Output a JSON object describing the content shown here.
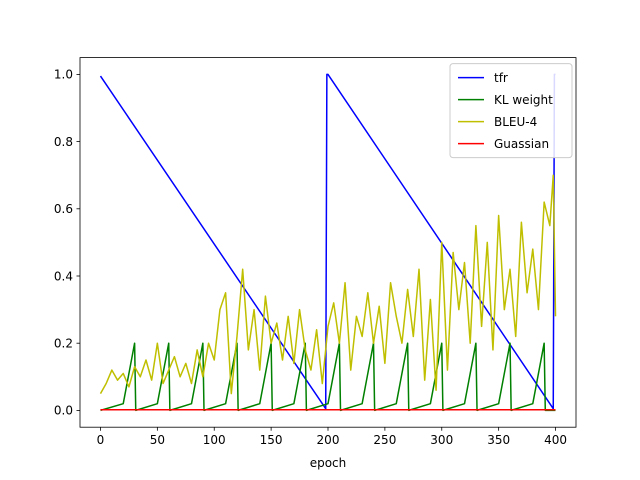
{
  "chart_data": {
    "type": "line",
    "title": "",
    "xlabel": "epoch",
    "ylabel": "",
    "xlim": [
      -18,
      418
    ],
    "ylim": [
      -0.05,
      1.05
    ],
    "x_ticks": [
      0,
      50,
      100,
      150,
      200,
      250,
      300,
      350,
      400
    ],
    "x_tick_labels": [
      "0",
      "50",
      "100",
      "150",
      "200",
      "250",
      "300",
      "350",
      "400"
    ],
    "y_ticks": [
      0.0,
      0.2,
      0.4,
      0.6,
      0.8,
      1.0
    ],
    "y_tick_labels": [
      "0.0",
      "0.2",
      "0.4",
      "0.6",
      "0.8",
      "1.0"
    ],
    "grid": false,
    "legend_position": "top-right",
    "series": [
      {
        "name": "tfr",
        "color": "#0000ff",
        "x": [
          0,
          198,
          199,
          200,
          398,
          399,
          400
        ],
        "y": [
          0.995,
          0.005,
          1.0,
          1.0,
          0.005,
          1.0,
          1.0
        ]
      },
      {
        "name": "KL weight",
        "color": "#008000",
        "x": [
          0,
          20,
          30,
          31,
          50,
          60,
          61,
          80,
          90,
          91,
          110,
          120,
          121,
          140,
          150,
          151,
          170,
          180,
          181,
          200,
          210,
          211,
          230,
          240,
          241,
          260,
          270,
          271,
          290,
          300,
          301,
          320,
          330,
          331,
          350,
          360,
          361,
          380,
          390,
          391,
          400
        ],
        "y": [
          0.0,
          0.02,
          0.2,
          0.0,
          0.02,
          0.2,
          0.0,
          0.02,
          0.2,
          0.0,
          0.02,
          0.2,
          0.0,
          0.02,
          0.2,
          0.0,
          0.02,
          0.2,
          0.0,
          0.02,
          0.2,
          0.0,
          0.02,
          0.2,
          0.0,
          0.02,
          0.2,
          0.0,
          0.02,
          0.2,
          0.0,
          0.02,
          0.2,
          0.0,
          0.02,
          0.2,
          0.0,
          0.02,
          0.2,
          0.0,
          0.0
        ]
      },
      {
        "name": "BLEU-4",
        "color": "#bfbf00",
        "x": [
          0,
          5,
          10,
          15,
          20,
          25,
          30,
          35,
          40,
          45,
          50,
          55,
          60,
          65,
          70,
          75,
          80,
          85,
          90,
          95,
          100,
          105,
          110,
          115,
          120,
          125,
          130,
          135,
          140,
          145,
          150,
          155,
          160,
          165,
          170,
          175,
          180,
          185,
          190,
          195,
          200,
          205,
          210,
          215,
          220,
          225,
          230,
          235,
          240,
          245,
          250,
          255,
          260,
          265,
          270,
          275,
          280,
          285,
          290,
          295,
          300,
          305,
          310,
          315,
          320,
          325,
          330,
          335,
          340,
          345,
          350,
          355,
          360,
          365,
          370,
          375,
          380,
          385,
          390,
          395,
          398,
          400
        ],
        "y": [
          0.05,
          0.08,
          0.12,
          0.09,
          0.11,
          0.07,
          0.13,
          0.1,
          0.15,
          0.09,
          0.2,
          0.08,
          0.12,
          0.16,
          0.1,
          0.14,
          0.08,
          0.18,
          0.1,
          0.2,
          0.15,
          0.3,
          0.35,
          0.05,
          0.22,
          0.42,
          0.18,
          0.3,
          0.12,
          0.34,
          0.2,
          0.26,
          0.15,
          0.28,
          0.14,
          0.3,
          0.18,
          0.12,
          0.24,
          0.08,
          0.25,
          0.32,
          0.2,
          0.38,
          0.12,
          0.28,
          0.22,
          0.35,
          0.2,
          0.31,
          0.14,
          0.38,
          0.28,
          0.2,
          0.36,
          0.22,
          0.42,
          0.09,
          0.33,
          0.06,
          0.5,
          0.12,
          0.47,
          0.3,
          0.44,
          0.2,
          0.55,
          0.25,
          0.5,
          0.18,
          0.58,
          0.3,
          0.42,
          0.22,
          0.56,
          0.35,
          0.48,
          0.3,
          0.62,
          0.55,
          0.7,
          0.28
        ]
      },
      {
        "name": "Guassian",
        "color": "#ff0000",
        "x": [
          0,
          400
        ],
        "y": [
          0.002,
          0.002
        ]
      }
    ]
  }
}
